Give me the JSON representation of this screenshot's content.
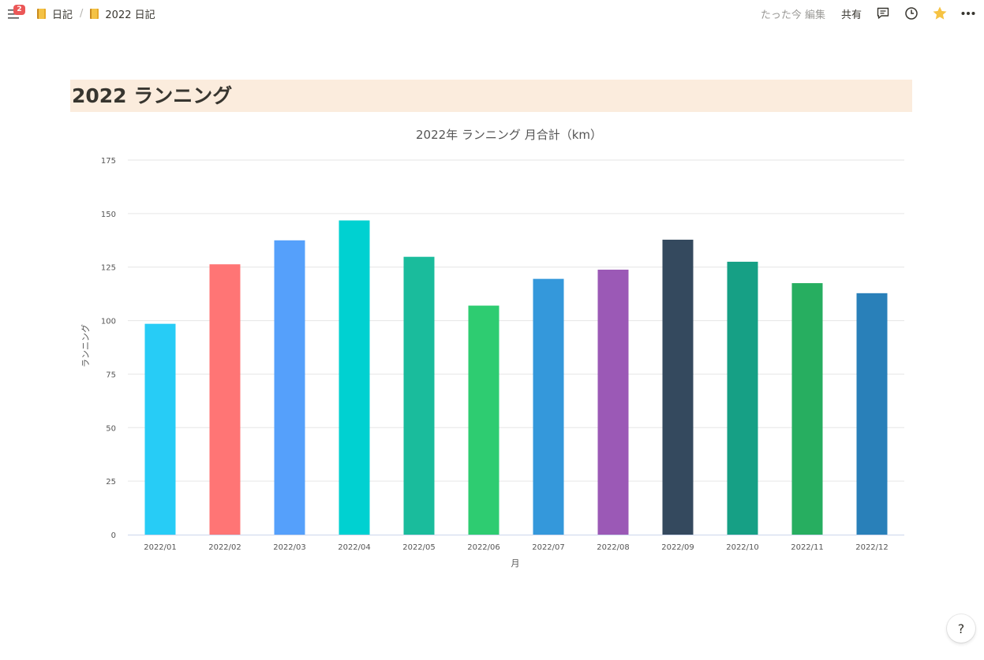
{
  "topbar": {
    "notification_count": "2",
    "breadcrumbs": [
      {
        "label": "日記",
        "icon": "notebook-icon"
      },
      {
        "label": "2022 日記",
        "icon": "notebook-icon"
      }
    ],
    "separator": "/",
    "edited_label": "たった今 編集",
    "share_label": "共有",
    "icons": [
      "comment-icon",
      "clock-icon",
      "star-icon",
      "more-icon"
    ],
    "star_color": "#f6c343"
  },
  "page": {
    "heading": "2022 ランニング",
    "heading_bg": "#fbecdd"
  },
  "chart_data": {
    "type": "bar",
    "title": "2022年 ランニング 月合計（km）",
    "xlabel": "月",
    "ylabel": "ランニング",
    "ylim": [
      0,
      175
    ],
    "yticks": [
      0,
      25,
      50,
      75,
      100,
      125,
      150,
      175
    ],
    "grid": true,
    "categories": [
      "2022/01",
      "2022/02",
      "2022/03",
      "2022/04",
      "2022/05",
      "2022/06",
      "2022/07",
      "2022/08",
      "2022/09",
      "2022/10",
      "2022/11",
      "2022/12"
    ],
    "values": [
      98.5,
      126.3,
      137.5,
      146.8,
      129.8,
      107.0,
      119.5,
      123.8,
      137.8,
      127.5,
      117.5,
      112.8
    ],
    "colors": [
      "#27ccf6",
      "#ff7575",
      "#55a0fb",
      "#00d1d1",
      "#1abc9c",
      "#2ecc71",
      "#3498db",
      "#9b59b6",
      "#34495e",
      "#16a085",
      "#27ae60",
      "#2980b9"
    ]
  },
  "help": {
    "label": "?"
  }
}
